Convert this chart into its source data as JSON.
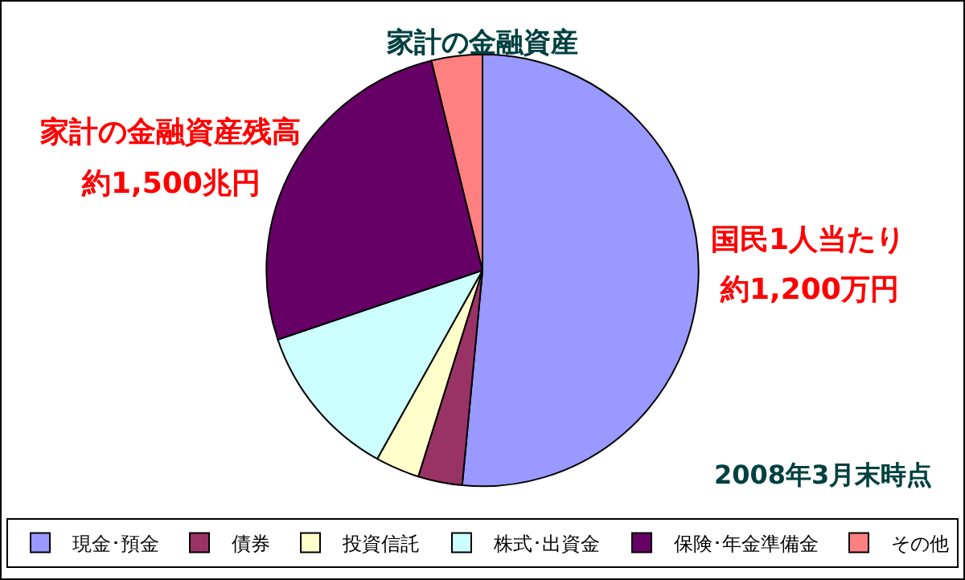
{
  "chart_data": {
    "type": "pie",
    "title": "家計の金融資産",
    "categories": [
      "現金･預金",
      "債券",
      "投資信託",
      "株式･出資金",
      "保険･年金準備金",
      "その他"
    ],
    "values": [
      51.5,
      3.3,
      3.3,
      11.7,
      26.4,
      3.8
    ],
    "colors": [
      "#9999ff",
      "#993366",
      "#ffffcc",
      "#ccffff",
      "#660066",
      "#ff8080"
    ],
    "legend": "bottom",
    "annotations": [
      "家計の金融資産残高",
      "約1,500兆円",
      "国民1人当たり",
      "約1,200万円",
      "2008年3月末時点"
    ]
  }
}
